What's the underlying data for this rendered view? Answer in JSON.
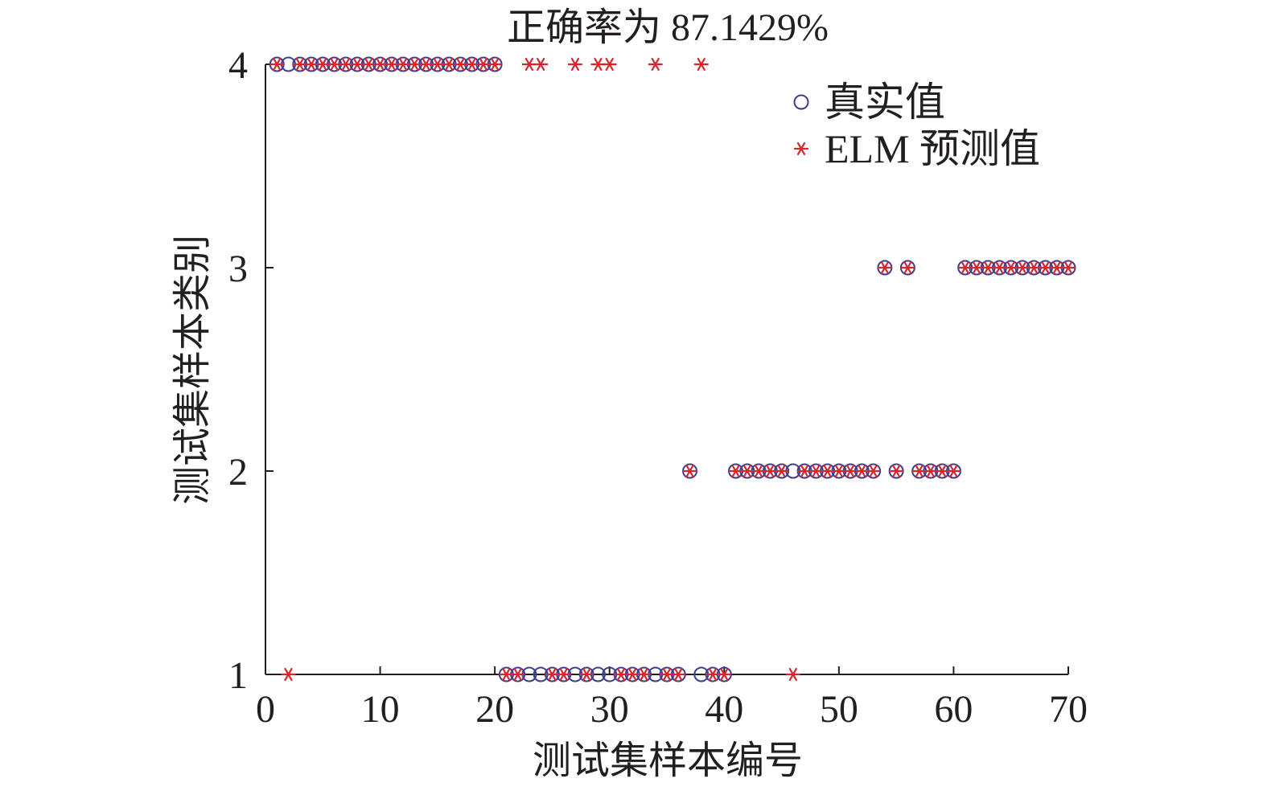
{
  "chart_data": {
    "type": "scatter",
    "title": "正确率为 87.1429%",
    "xlabel": "测试集样本编号",
    "ylabel": "测试集样本类别",
    "xlim": [
      0,
      70
    ],
    "ylim": [
      1,
      4
    ],
    "xticks": [
      0,
      10,
      20,
      30,
      40,
      50,
      60,
      70
    ],
    "yticks": [
      1,
      2,
      3,
      4
    ],
    "grid": false,
    "legend_position": "top-right",
    "series": [
      {
        "name": "真实值",
        "marker": "circle",
        "color": "#3a3f8f",
        "x": [
          1,
          2,
          3,
          4,
          5,
          6,
          7,
          8,
          9,
          10,
          11,
          12,
          13,
          14,
          15,
          16,
          17,
          18,
          19,
          20,
          21,
          22,
          23,
          24,
          25,
          26,
          27,
          28,
          29,
          30,
          31,
          32,
          33,
          34,
          35,
          36,
          37,
          38,
          39,
          40,
          41,
          42,
          43,
          44,
          45,
          46,
          47,
          48,
          49,
          50,
          51,
          52,
          53,
          54,
          55,
          56,
          57,
          58,
          59,
          60,
          61,
          62,
          63,
          64,
          65,
          66,
          67,
          68,
          69,
          70
        ],
        "y": [
          4,
          4,
          4,
          4,
          4,
          4,
          4,
          4,
          4,
          4,
          4,
          4,
          4,
          4,
          4,
          4,
          4,
          4,
          4,
          4,
          1,
          1,
          1,
          1,
          1,
          1,
          1,
          1,
          1,
          1,
          1,
          1,
          1,
          1,
          1,
          1,
          2,
          1,
          1,
          1,
          2,
          2,
          2,
          2,
          2,
          2,
          2,
          2,
          2,
          2,
          2,
          2,
          2,
          3,
          2,
          3,
          2,
          2,
          2,
          2,
          3,
          3,
          3,
          3,
          3,
          3,
          3,
          3,
          3,
          3
        ]
      },
      {
        "name": "ELM 预测值",
        "marker": "asterisk",
        "color": "#d7262e",
        "x": [
          1,
          2,
          3,
          4,
          5,
          6,
          7,
          8,
          9,
          10,
          11,
          12,
          13,
          14,
          15,
          16,
          17,
          18,
          19,
          20,
          21,
          22,
          23,
          24,
          25,
          26,
          27,
          28,
          29,
          30,
          31,
          32,
          33,
          34,
          35,
          36,
          37,
          38,
          39,
          40,
          41,
          42,
          43,
          44,
          45,
          46,
          47,
          48,
          49,
          50,
          51,
          52,
          53,
          54,
          55,
          56,
          57,
          58,
          59,
          60,
          61,
          62,
          63,
          64,
          65,
          66,
          67,
          68,
          69,
          70
        ],
        "y": [
          4,
          1,
          4,
          4,
          4,
          4,
          4,
          4,
          4,
          4,
          4,
          4,
          4,
          4,
          4,
          4,
          4,
          4,
          4,
          4,
          1,
          1,
          4,
          4,
          1,
          1,
          4,
          1,
          4,
          4,
          1,
          1,
          1,
          4,
          1,
          1,
          2,
          4,
          1,
          1,
          2,
          2,
          2,
          2,
          2,
          1,
          2,
          2,
          2,
          2,
          2,
          2,
          2,
          3,
          2,
          3,
          2,
          2,
          2,
          2,
          3,
          3,
          3,
          3,
          3,
          3,
          3,
          3,
          3,
          3
        ]
      }
    ]
  }
}
